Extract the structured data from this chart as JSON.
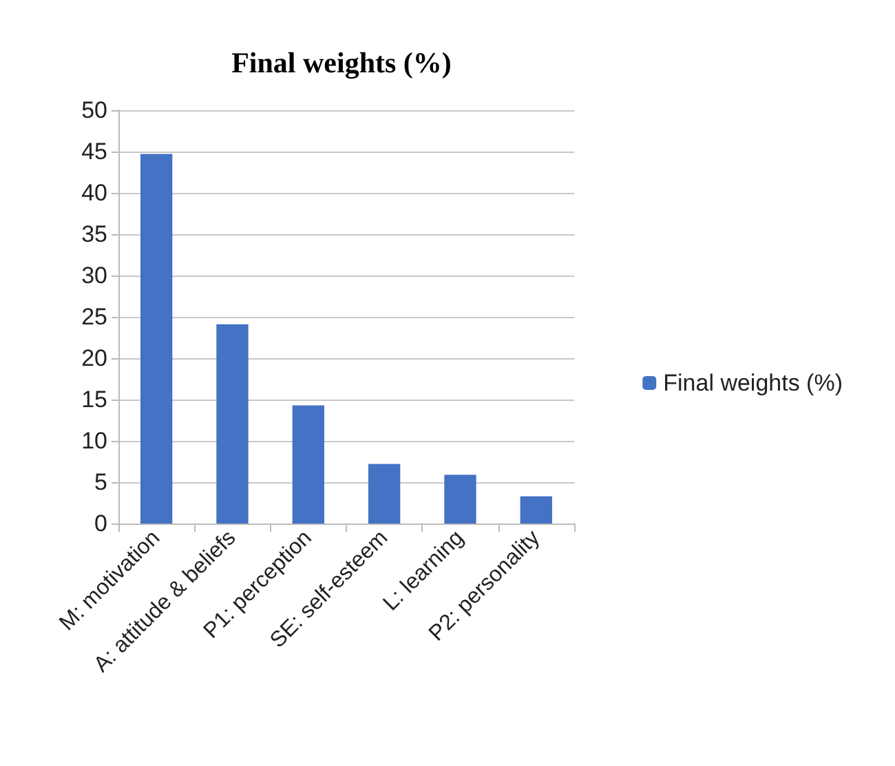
{
  "chart_data": {
    "type": "bar",
    "title": "Final weights (%)",
    "categories": [
      "M: motivation",
      "A: attitude & beliefs",
      "P1: perception",
      "SE: self-esteem",
      "L: learning",
      "P2: personality"
    ],
    "series": [
      {
        "name": "Final weights (%)",
        "color": "#4472c4",
        "values": [
          44.7,
          24.1,
          14.3,
          7.2,
          5.9,
          3.3
        ]
      }
    ],
    "ylim": [
      0,
      50
    ],
    "yticks": [
      0,
      5,
      10,
      15,
      20,
      25,
      30,
      35,
      40,
      45,
      50
    ],
    "grid": "y",
    "legend": "right"
  }
}
